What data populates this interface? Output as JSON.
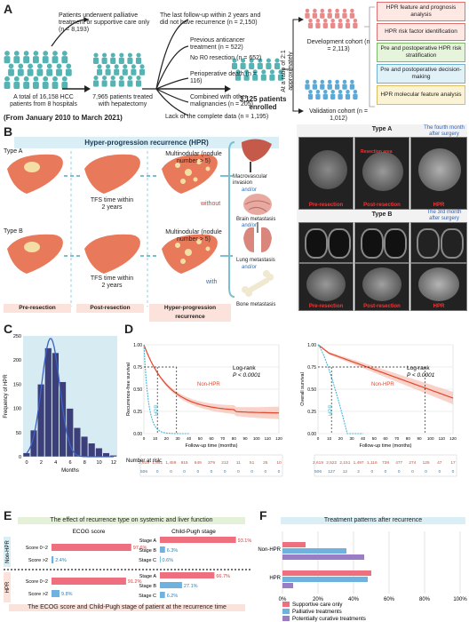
{
  "panelA": {
    "label": "A",
    "start": "A total of 16,158 HCC patients from 8 hospitals",
    "period": "(From January 2010 to March 2021)",
    "excl1": "Patients underwent palliative treatment or supportive care only (n = 8,193)",
    "hepatectomy": "7,965 patients treated with hepatectomy",
    "excl2_title": "The last follow-up within 2 years and did not have recurrence (n = 2,150)",
    "excl2_items": [
      "Previous anticancer treatment (n = 522)",
      "No R0 resection (n = 652)",
      "Perioperative death (n = 116)",
      "Combined with other malignancies (n = 205)"
    ],
    "excl_lack": "Lack of the complete data (n = 1,195)",
    "enrolled": "3,125 patients enrolled",
    "ratio": "At a ratio of 2:1 approximately",
    "dev": "Development cohort (n = 2,113)",
    "val": "Validation cohort (n = 1,012)",
    "analyses": [
      "HPR feature and prognosis analysis",
      "HPR risk factor identification",
      "Pre and postoperative HPR risk stratification",
      "Pre and postoperative decision-making",
      "HPR molecular feature analysis"
    ]
  },
  "panelB": {
    "label": "B",
    "title": "Hyper-progression recurrence (HPR)",
    "typeA": "Type A",
    "typeB": "Type B",
    "tfs": "TFS time within 2 years",
    "multinodular": "Multinodular (nodule number > 5)",
    "without": "without",
    "with": "with",
    "met_macro": "Macrovascular invasion",
    "met_brain": "Brain metastasis",
    "met_lung": "Lung metastasis",
    "met_bone": "Bone metastasis",
    "andor": "and/or",
    "stage_pre": "Pre-resection",
    "stage_post": "Post-resection",
    "stage_hpr": "Hyper-progression recurrence",
    "ctA_title": "Type A",
    "ctA_note": "The fourth month after surgery",
    "ctB_title": "Type B",
    "ctB_note": "The 3rd month after surgery",
    "ct_pre": "Pre-resection",
    "ct_post": "Post-resection",
    "ct_hpr": "HPR",
    "ct_resection": "Resection area"
  },
  "panelC": {
    "label": "C",
    "chart_data": {
      "type": "bar",
      "ylabel": "Frequency of HPR",
      "xlabel": "Months",
      "categories": [
        0,
        1,
        2,
        3,
        4,
        5,
        6,
        7,
        8,
        9,
        10,
        11,
        12
      ],
      "x_ticks": [
        "0",
        "2",
        "4",
        "6",
        "8",
        "10",
        "12"
      ],
      "values": [
        8,
        55,
        150,
        225,
        215,
        155,
        100,
        60,
        42,
        28,
        18,
        8,
        3
      ],
      "ylim": [
        0,
        250
      ],
      "y_ticks": [
        "0",
        "50",
        "100",
        "150",
        "200",
        "250"
      ]
    }
  },
  "panelD": {
    "label": "D",
    "left": {
      "ylabel": "Recurrence-free survival",
      "xlabel": "Follow-up time (months)",
      "logrank": "Log-rank",
      "p": "P < 0.0001",
      "nonhpr": "Non-HPR",
      "hpr": "HPR",
      "x_ticks": [
        "0",
        "10",
        "20",
        "30",
        "40",
        "50",
        "60",
        "70",
        "80",
        "90",
        "100",
        "110",
        "120"
      ],
      "y_ticks": [
        "0.00",
        "0.25",
        "0.50",
        "0.75",
        "1.00"
      ],
      "risk_title": "Number at risk:",
      "risk_nonhpr": [
        "2,619",
        "1,841",
        "1,459",
        "915",
        "649",
        "379",
        "212",
        "11",
        "51",
        "25",
        "10"
      ],
      "risk_hpr": [
        "506",
        "0",
        "0",
        "0",
        "0",
        "0",
        "0",
        "0",
        "0",
        "0",
        "0"
      ]
    },
    "right": {
      "ylabel": "Overall survival",
      "xlabel": "Follow-up time (months)",
      "logrank": "Log-rank",
      "p": "P < 0.0001",
      "nonhpr": "Non-HPR",
      "hpr": "HPR",
      "x_ticks": [
        "0",
        "10",
        "20",
        "30",
        "40",
        "50",
        "60",
        "70",
        "80",
        "90",
        "100",
        "110",
        "120"
      ],
      "y_ticks": [
        "0.00",
        "0.25",
        "0.50",
        "0.75",
        "1.00"
      ],
      "risk_nonhpr": [
        "2,619",
        "2,522",
        "2,151",
        "1,497",
        "1,116",
        "738",
        "477",
        "274",
        "125",
        "47",
        "17"
      ],
      "risk_hpr": [
        "506",
        "127",
        "12",
        "2",
        "0",
        "0",
        "0",
        "0",
        "0",
        "0",
        "0"
      ]
    }
  },
  "panelE": {
    "label": "E",
    "title": "The effect of recurrence type on systemic and liver function",
    "ecog_title": "ECOG score",
    "cp_title": "Child-Pugh stage",
    "nonhpr": "Non-HPR",
    "hpr": "HPR",
    "ecog_rows": [
      "Score 0~2",
      "Score >2"
    ],
    "cp_rows": [
      "Stage A",
      "Stage B",
      "Stage C"
    ],
    "chart_data": {
      "type": "bar",
      "series": [
        {
          "name": "Non-HPR ECOG",
          "categories": [
            "Score 0~2",
            "Score >2"
          ],
          "values": [
            97.6,
            2.4
          ]
        },
        {
          "name": "Non-HPR Child-Pugh",
          "categories": [
            "Stage A",
            "Stage B",
            "Stage C"
          ],
          "values": [
            93.1,
            6.3,
            0.6
          ]
        },
        {
          "name": "HPR ECOG",
          "categories": [
            "Score 0~2",
            "Score >2"
          ],
          "values": [
            91.2,
            9.8
          ]
        },
        {
          "name": "HPR Child-Pugh",
          "categories": [
            "Stage A",
            "Stage B",
            "Stage C"
          ],
          "values": [
            66.7,
            27.1,
            6.2
          ]
        }
      ]
    },
    "labels": {
      "n_ecog": [
        "97.6%",
        "2.4%"
      ],
      "n_cp": [
        "93.1%",
        "6.3%",
        "0.6%"
      ],
      "h_ecog": [
        "91.2%",
        "9.8%"
      ],
      "h_cp": [
        "66.7%",
        "27.1%",
        "6.2%"
      ]
    },
    "caption": "The ECOG score and Child-Pugh stage of patient at the recurrence time",
    "colors": {
      "pink": "#ee6f7e",
      "blue": "#6fb2e0"
    }
  },
  "panelF": {
    "label": "F",
    "title": "Treatment patterns after recurrence",
    "chart_data": {
      "type": "bar",
      "orientation": "horizontal",
      "categories": [
        "Non-HPR",
        "HPR"
      ],
      "series": [
        {
          "name": "Supportive care only",
          "values": [
            13,
            50
          ],
          "color": "#ee6f7e"
        },
        {
          "name": "Palliative treatments",
          "values": [
            36,
            48
          ],
          "color": "#6fb2e0"
        },
        {
          "name": "Potentially curative treatments",
          "values": [
            46,
            6
          ],
          "color": "#9b7cc6"
        }
      ],
      "x_ticks": [
        "0%",
        "20%",
        "40%",
        "60%",
        "80%",
        "100%"
      ]
    }
  }
}
